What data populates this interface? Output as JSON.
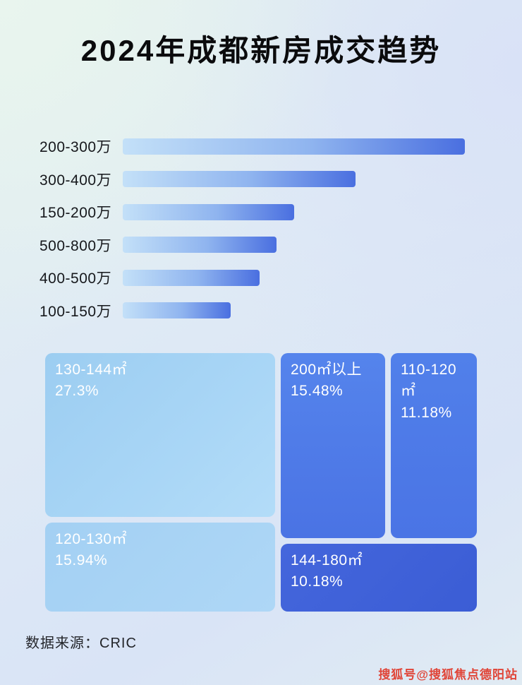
{
  "title": "2024年成都新房成交趋势",
  "chart_data": [
    {
      "type": "bar",
      "orientation": "horizontal",
      "title": "2024年成都新房成交趋势",
      "categories": [
        "200-300万",
        "300-400万",
        "150-200万",
        "500-800万",
        "400-500万",
        "100-150万"
      ],
      "values_relative_pct_of_max": [
        100,
        68,
        50,
        45,
        40,
        31.5
      ],
      "value_labels_shown": false,
      "grid": false,
      "legend": false
    },
    {
      "type": "treemap",
      "items": [
        {
          "label": "130-144㎡",
          "value_pct": 27.3,
          "value_text": "27.3%"
        },
        {
          "label": "120-130㎡",
          "value_pct": 15.94,
          "value_text": "15.94%"
        },
        {
          "label": "200㎡以上",
          "value_pct": 15.48,
          "value_text": "15.48%"
        },
        {
          "label": "110-120㎡",
          "value_pct": 11.18,
          "value_text": "11.18%"
        },
        {
          "label": "144-180㎡",
          "value_pct": 10.18,
          "value_text": "10.18%"
        }
      ]
    }
  ],
  "footer": {
    "source_label": "数据来源：CRIC"
  },
  "watermark": {
    "text": "搜狐号@搜狐焦点德阳站"
  },
  "colors": {
    "bar_gradient_start": "#c3e0f8",
    "bar_gradient_end": "#4a6fe0",
    "treemap_light_blue": "#a6d2f4",
    "treemap_medium_blue": "#4d79e7",
    "treemap_dark_blue": "#3e60d8",
    "watermark_red": "#e04437"
  }
}
